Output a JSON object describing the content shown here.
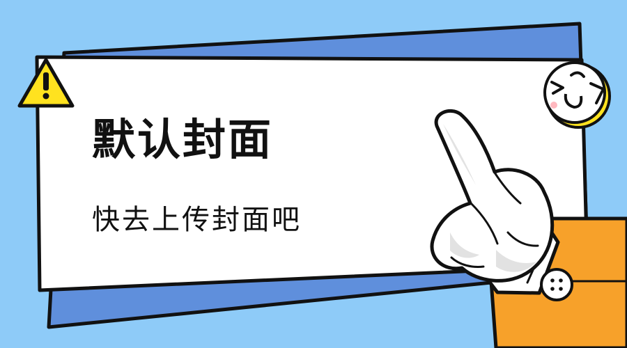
{
  "card": {
    "title": "默认封面",
    "subtitle": "快去上传封面吧"
  },
  "icons": {
    "warning": "warning-triangle-icon",
    "face": "winking-face-sticker",
    "hand": "pointing-hand-illustration"
  },
  "colors": {
    "background": "#8ecbf8",
    "card_shadow": "#5f8fdc",
    "card": "#ffffff",
    "outline": "#111111",
    "warning": "#ffe21f",
    "sleeve": "#f7a12a",
    "glove_shadow": "#e2e2e2"
  }
}
